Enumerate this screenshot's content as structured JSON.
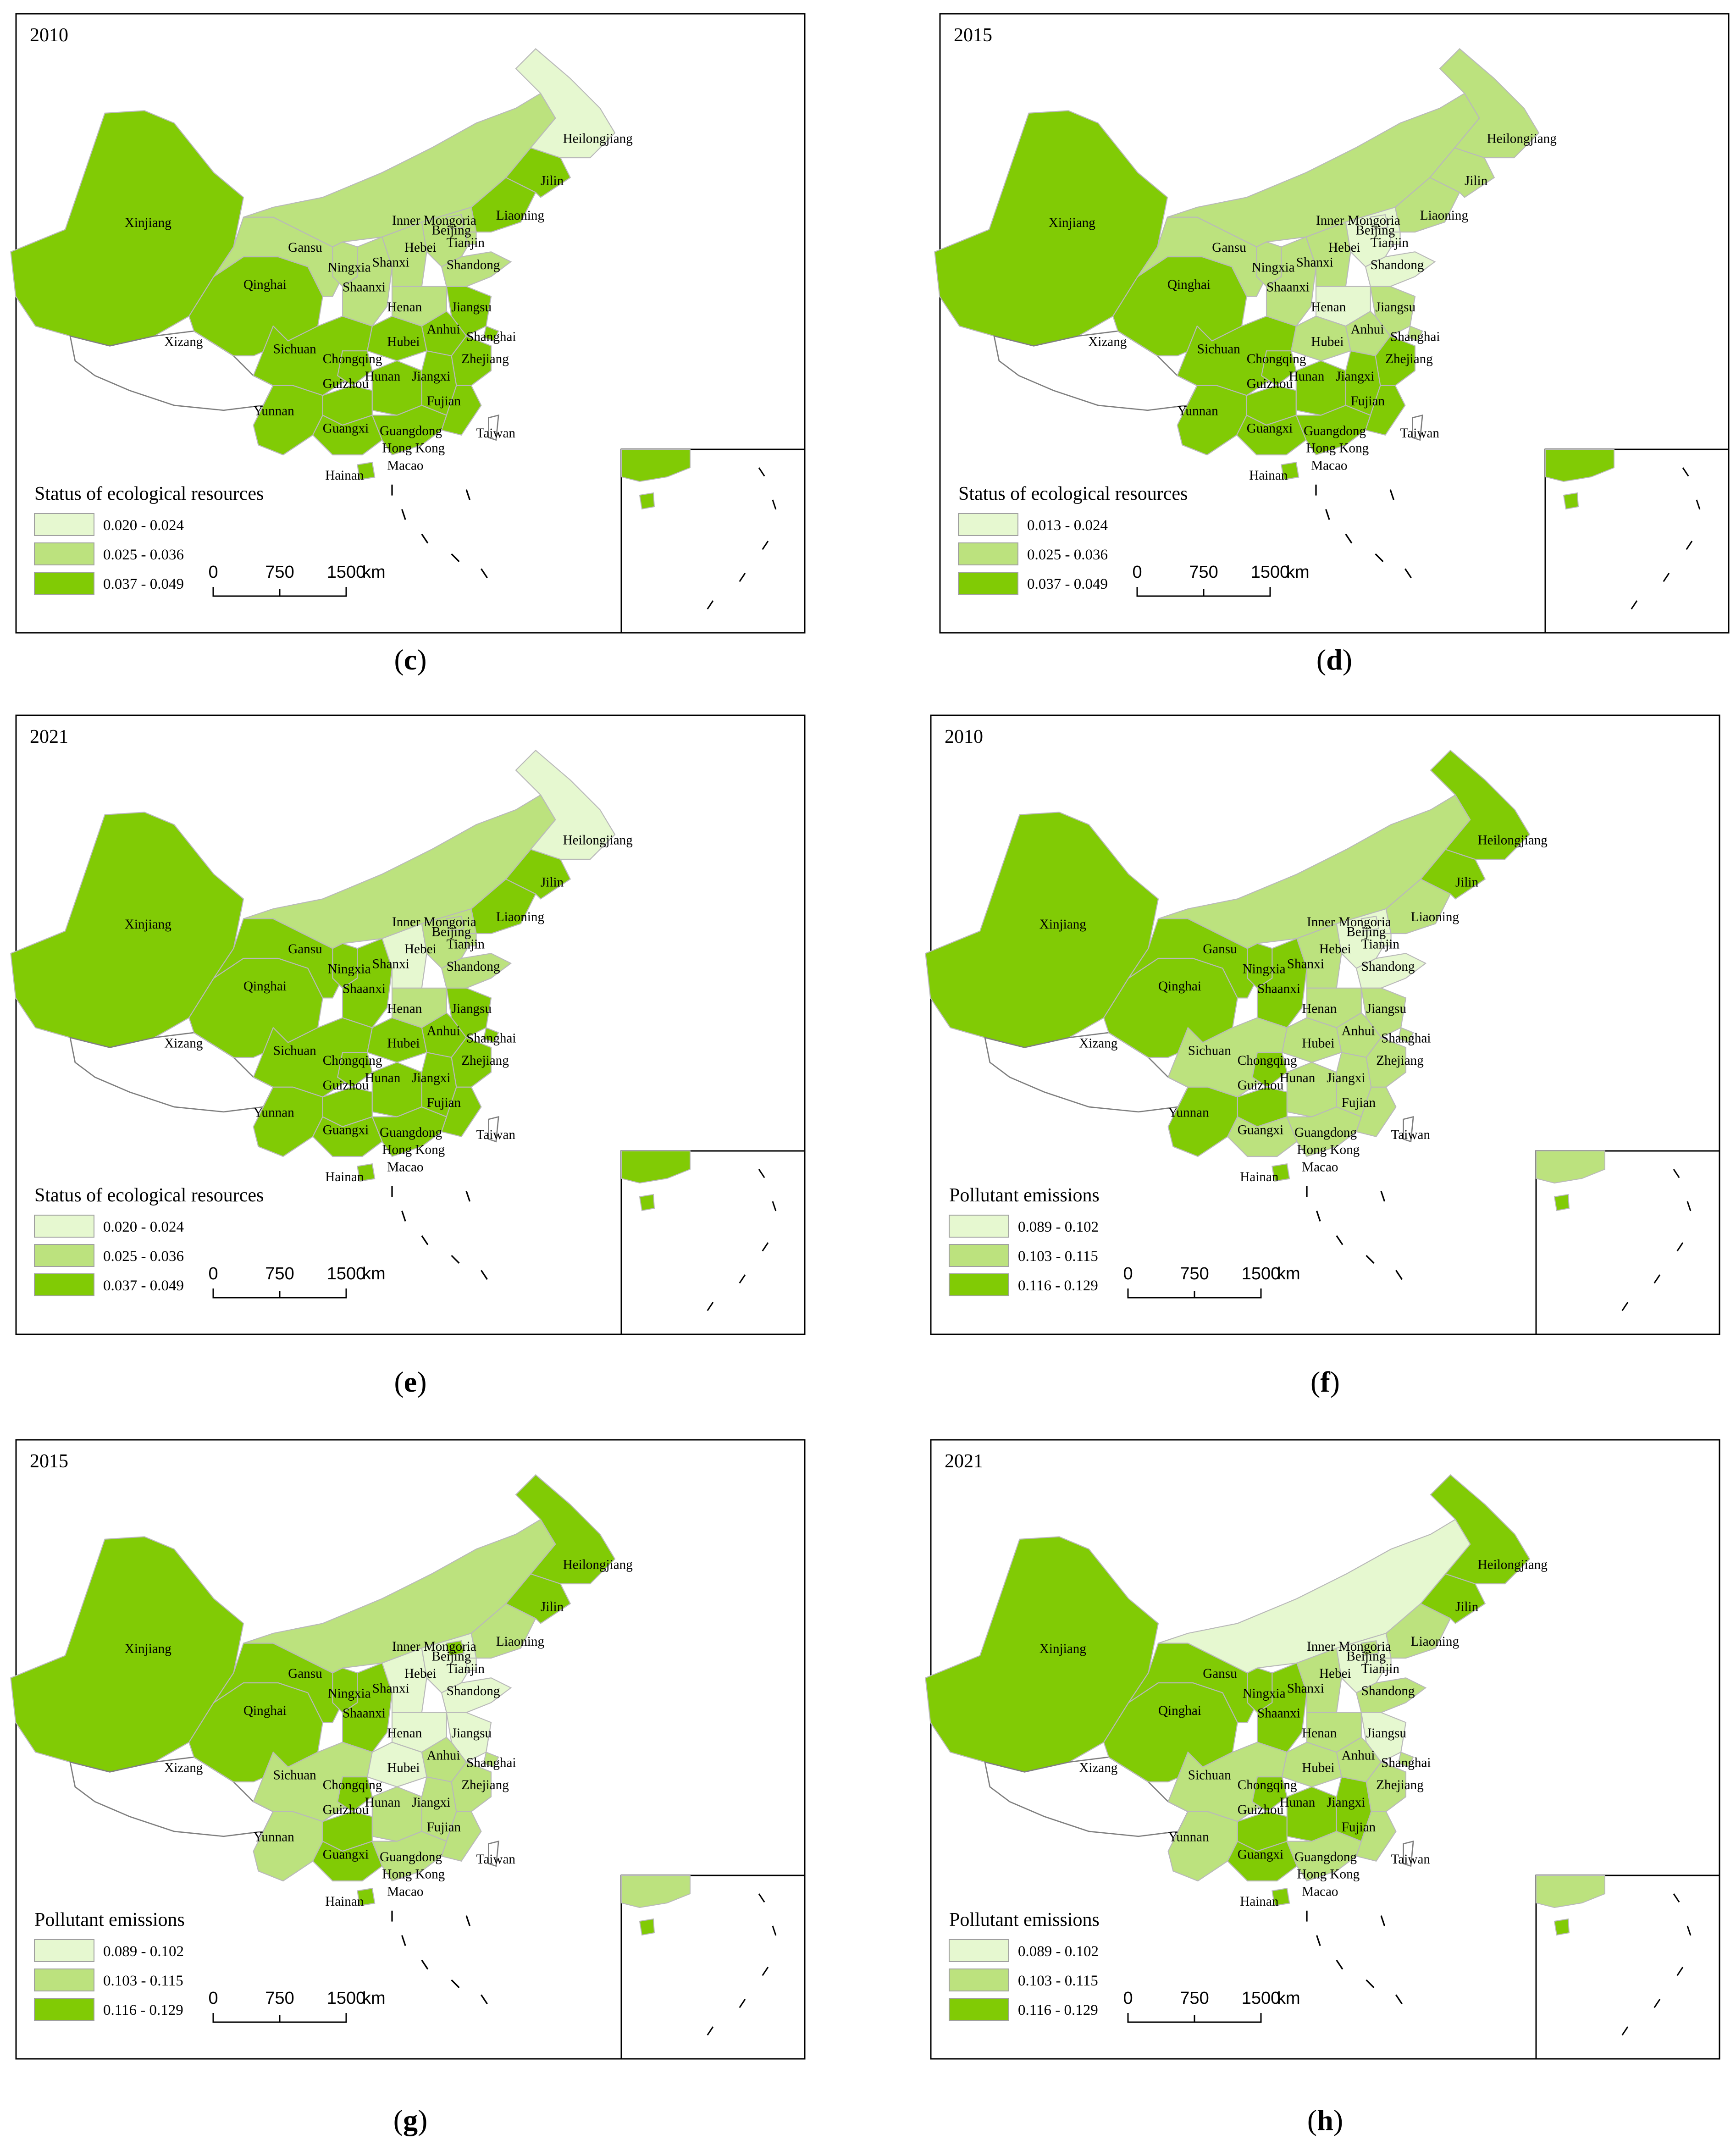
{
  "colors": {
    "class1": "#e6f8d0",
    "class2": "#bce27e",
    "class3": "#81cb05",
    "blank": "#ffffff"
  },
  "panels": [
    {
      "id": "c",
      "year": "2010",
      "caption_letter": "c",
      "legend": {
        "title": "Status of ecological resources",
        "classes": [
          "0.020 - 0.024",
          "0.025 - 0.036",
          "0.037 - 0.049"
        ]
      },
      "scale": {
        "ticks": [
          "0",
          "750",
          "1500"
        ],
        "unit": "km"
      },
      "province_class": {
        "Xinjiang": 3,
        "Qinghai": 3,
        "Gansu": 2,
        "Inner Mongoria": 2,
        "Ningxia": 2,
        "Shaanxi": 2,
        "Shanxi": 2,
        "Hebei": 2,
        "Beijing": 2,
        "Tianjin": 2,
        "Shandong": 2,
        "Liaoning": 3,
        "Jilin": 3,
        "Heilongjiang": 1,
        "Henan": 2,
        "Jiangsu": 3,
        "Anhui": 3,
        "Shanghai": 3,
        "Hubei": 3,
        "Sichuan": 3,
        "Chongqing": 3,
        "Guizhou": 3,
        "Hunan": 3,
        "Jiangxi": 3,
        "Zhejiang": 3,
        "Fujian": 3,
        "Yunnan": 3,
        "Guangxi": 3,
        "Guangdong": 3,
        "Hainan": 3,
        "Xizang": 0,
        "Taiwan": 0
      }
    },
    {
      "id": "d",
      "year": "2015",
      "caption_letter": "d",
      "legend": {
        "title": "Status of ecological resources",
        "classes": [
          "0.013 - 0.024",
          "0.025 - 0.036",
          "0.037 - 0.049"
        ]
      },
      "scale": {
        "ticks": [
          "0",
          "750",
          "1500"
        ],
        "unit": "km"
      },
      "province_class": {
        "Xinjiang": 3,
        "Qinghai": 3,
        "Gansu": 2,
        "Inner Mongoria": 2,
        "Ningxia": 2,
        "Shaanxi": 2,
        "Shanxi": 2,
        "Hebei": 1,
        "Beijing": 1,
        "Tianjin": 1,
        "Shandong": 1,
        "Liaoning": 2,
        "Jilin": 2,
        "Heilongjiang": 2,
        "Henan": 1,
        "Jiangsu": 2,
        "Anhui": 2,
        "Shanghai": 2,
        "Hubei": 2,
        "Sichuan": 3,
        "Chongqing": 3,
        "Guizhou": 3,
        "Hunan": 3,
        "Jiangxi": 3,
        "Zhejiang": 3,
        "Fujian": 3,
        "Yunnan": 3,
        "Guangxi": 3,
        "Guangdong": 3,
        "Hainan": 3,
        "Xizang": 0,
        "Taiwan": 0
      }
    },
    {
      "id": "e",
      "year": "2021",
      "caption_letter": "e",
      "legend": {
        "title": "Status of ecological resources",
        "classes": [
          "0.020 - 0.024",
          "0.025 - 0.036",
          "0.037 - 0.049"
        ]
      },
      "scale": {
        "ticks": [
          "0",
          "750",
          "1500"
        ],
        "unit": "km"
      },
      "province_class": {
        "Xinjiang": 3,
        "Qinghai": 3,
        "Gansu": 3,
        "Inner Mongoria": 2,
        "Ningxia": 3,
        "Shaanxi": 3,
        "Shanxi": 1,
        "Hebei": 2,
        "Beijing": 2,
        "Tianjin": 2,
        "Shandong": 2,
        "Liaoning": 3,
        "Jilin": 3,
        "Heilongjiang": 1,
        "Henan": 2,
        "Jiangsu": 3,
        "Anhui": 3,
        "Shanghai": 3,
        "Hubei": 3,
        "Sichuan": 3,
        "Chongqing": 3,
        "Guizhou": 3,
        "Hunan": 3,
        "Jiangxi": 3,
        "Zhejiang": 3,
        "Fujian": 3,
        "Yunnan": 3,
        "Guangxi": 3,
        "Guangdong": 3,
        "Hainan": 3,
        "Xizang": 0,
        "Taiwan": 0
      }
    },
    {
      "id": "f",
      "year": "2010",
      "caption_letter": "f",
      "legend": {
        "title": "Pollutant emissions",
        "classes": [
          "0.089 - 0.102",
          "0.103 - 0.115",
          "0.116 - 0.129"
        ]
      },
      "scale": {
        "ticks": [
          "0",
          "750",
          "1500"
        ],
        "unit": "km"
      },
      "province_class": {
        "Xinjiang": 3,
        "Qinghai": 3,
        "Gansu": 3,
        "Inner Mongoria": 2,
        "Ningxia": 3,
        "Shaanxi": 3,
        "Shanxi": 2,
        "Hebei": 1,
        "Beijing": 1,
        "Tianjin": 1,
        "Shandong": 1,
        "Liaoning": 2,
        "Jilin": 3,
        "Heilongjiang": 3,
        "Henan": 2,
        "Jiangsu": 2,
        "Anhui": 2,
        "Shanghai": 2,
        "Hubei": 2,
        "Sichuan": 2,
        "Chongqing": 3,
        "Guizhou": 3,
        "Hunan": 2,
        "Jiangxi": 2,
        "Zhejiang": 2,
        "Fujian": 2,
        "Yunnan": 3,
        "Guangxi": 2,
        "Guangdong": 2,
        "Hainan": 3,
        "Xizang": 0,
        "Taiwan": 0
      }
    },
    {
      "id": "g",
      "year": "2015",
      "caption_letter": "g",
      "legend": {
        "title": "Pollutant emissions",
        "classes": [
          "0.089 - 0.102",
          "0.103 - 0.115",
          "0.116 - 0.129"
        ]
      },
      "scale": {
        "ticks": [
          "0",
          "750",
          "1500"
        ],
        "unit": "km"
      },
      "province_class": {
        "Xinjiang": 3,
        "Qinghai": 3,
        "Gansu": 3,
        "Inner Mongoria": 2,
        "Ningxia": 3,
        "Shaanxi": 3,
        "Shanxi": 1,
        "Hebei": 1,
        "Beijing": 3,
        "Tianjin": 1,
        "Shandong": 1,
        "Liaoning": 2,
        "Jilin": 3,
        "Heilongjiang": 3,
        "Henan": 1,
        "Jiangsu": 1,
        "Anhui": 2,
        "Shanghai": 2,
        "Hubei": 1,
        "Sichuan": 2,
        "Chongqing": 3,
        "Guizhou": 3,
        "Hunan": 2,
        "Jiangxi": 2,
        "Zhejiang": 2,
        "Fujian": 2,
        "Yunnan": 2,
        "Guangxi": 3,
        "Guangdong": 2,
        "Hainan": 3,
        "Xizang": 0,
        "Taiwan": 0
      }
    },
    {
      "id": "h",
      "year": "2021",
      "caption_letter": "h",
      "legend": {
        "title": "Pollutant emissions",
        "classes": [
          "0.089 - 0.102",
          "0.103 - 0.115",
          "0.116 - 0.129"
        ]
      },
      "scale": {
        "ticks": [
          "0",
          "750",
          "1500"
        ],
        "unit": "km"
      },
      "province_class": {
        "Xinjiang": 3,
        "Qinghai": 3,
        "Gansu": 3,
        "Inner Mongoria": 1,
        "Ningxia": 3,
        "Shaanxi": 3,
        "Shanxi": 2,
        "Hebei": 1,
        "Beijing": 2,
        "Tianjin": 1,
        "Shandong": 2,
        "Liaoning": 2,
        "Jilin": 3,
        "Heilongjiang": 3,
        "Henan": 2,
        "Jiangsu": 1,
        "Anhui": 2,
        "Shanghai": 2,
        "Hubei": 2,
        "Sichuan": 2,
        "Chongqing": 3,
        "Guizhou": 3,
        "Hunan": 3,
        "Jiangxi": 3,
        "Zhejiang": 2,
        "Fujian": 2,
        "Yunnan": 2,
        "Guangxi": 3,
        "Guangdong": 2,
        "Hainan": 3,
        "Xizang": 0,
        "Taiwan": 0
      }
    }
  ],
  "map_labels": [
    "Xinjiang",
    "Xizang",
    "Qinghai",
    "Gansu",
    "Inner Mongoria",
    "Ningxia",
    "Shaanxi",
    "Shanxi",
    "Hebei",
    "Beijing",
    "Tianjin",
    "Shandong",
    "Liaoning",
    "Jilin",
    "Heilongjiang",
    "Henan",
    "Jiangsu",
    "Anhui",
    "Shanghai",
    "Hubei",
    "Sichuan",
    "Chongqing",
    "Guizhou",
    "Hunan",
    "Jiangxi",
    "Zhejiang",
    "Fujian",
    "Yunnan",
    "Guangxi",
    "Guangdong",
    "Hong Kong",
    "Macao",
    "Hainan",
    "Taiwan"
  ]
}
